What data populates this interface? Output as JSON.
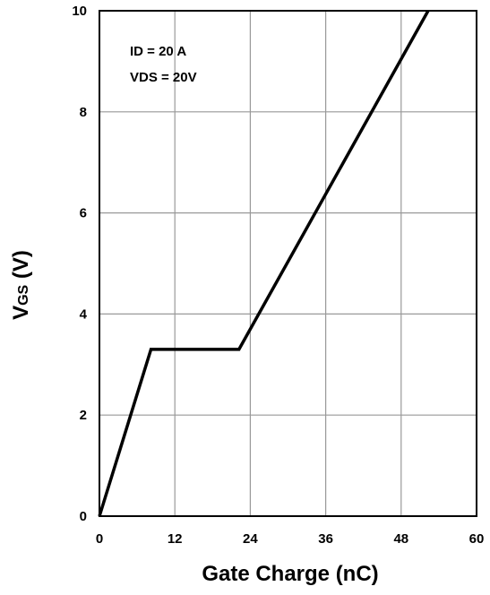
{
  "chart_data": {
    "type": "line",
    "xlabel": "Gate Charge (nC)",
    "ylabel_main": "V",
    "ylabel_sub": "GS",
    "ylabel_unit": " (V)",
    "xlim": [
      0,
      60
    ],
    "ylim": [
      0,
      10
    ],
    "xticks": [
      0,
      12,
      24,
      36,
      48,
      60
    ],
    "yticks": [
      0,
      2,
      4,
      6,
      8,
      10
    ],
    "grid": true,
    "annotations": [
      "ID = 20 A",
      "VDS = 20V"
    ],
    "series": [
      {
        "x": [
          0,
          8.2,
          22.2,
          52.3
        ],
        "y": [
          0,
          3.3,
          3.3,
          10
        ]
      }
    ],
    "colors": {
      "line": "#000000",
      "grid": "#999999",
      "frame": "#000000"
    }
  }
}
